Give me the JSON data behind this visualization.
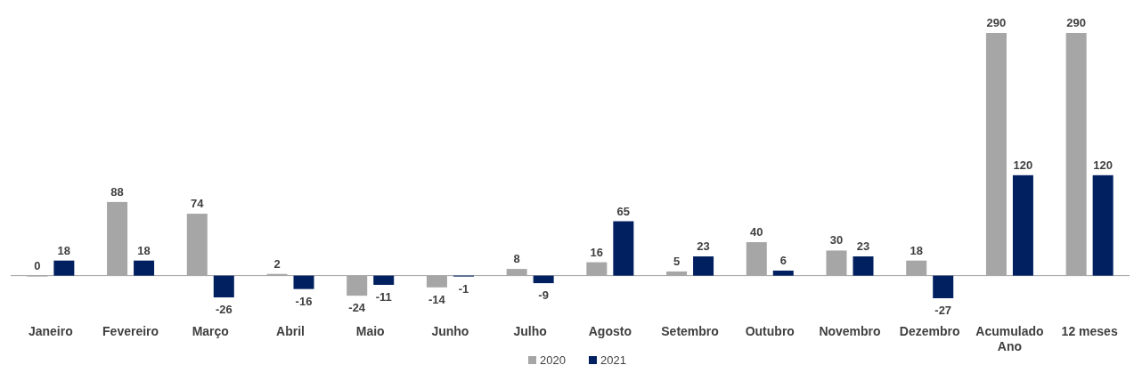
{
  "chart_data": {
    "type": "bar",
    "data_labels": true,
    "legend": "bottom",
    "categories": [
      "Janeiro",
      "Fevereiro",
      "Março",
      "Abril",
      "Maio",
      "Junho",
      "Julho",
      "Agosto",
      "Setembro",
      "Outubro",
      "Novembro",
      "Dezembro",
      "Acumulado Ano",
      "12 meses"
    ],
    "series": [
      {
        "name": "2020",
        "color": "#a6a6a6",
        "values": [
          0,
          88,
          74,
          2,
          -24,
          -14,
          8,
          16,
          5,
          40,
          30,
          18,
          290,
          290
        ]
      },
      {
        "name": "2021",
        "color": "#002060",
        "values": [
          18,
          18,
          -26,
          -16,
          -11,
          -1,
          -9,
          65,
          23,
          6,
          23,
          -27,
          120,
          120
        ]
      }
    ]
  }
}
